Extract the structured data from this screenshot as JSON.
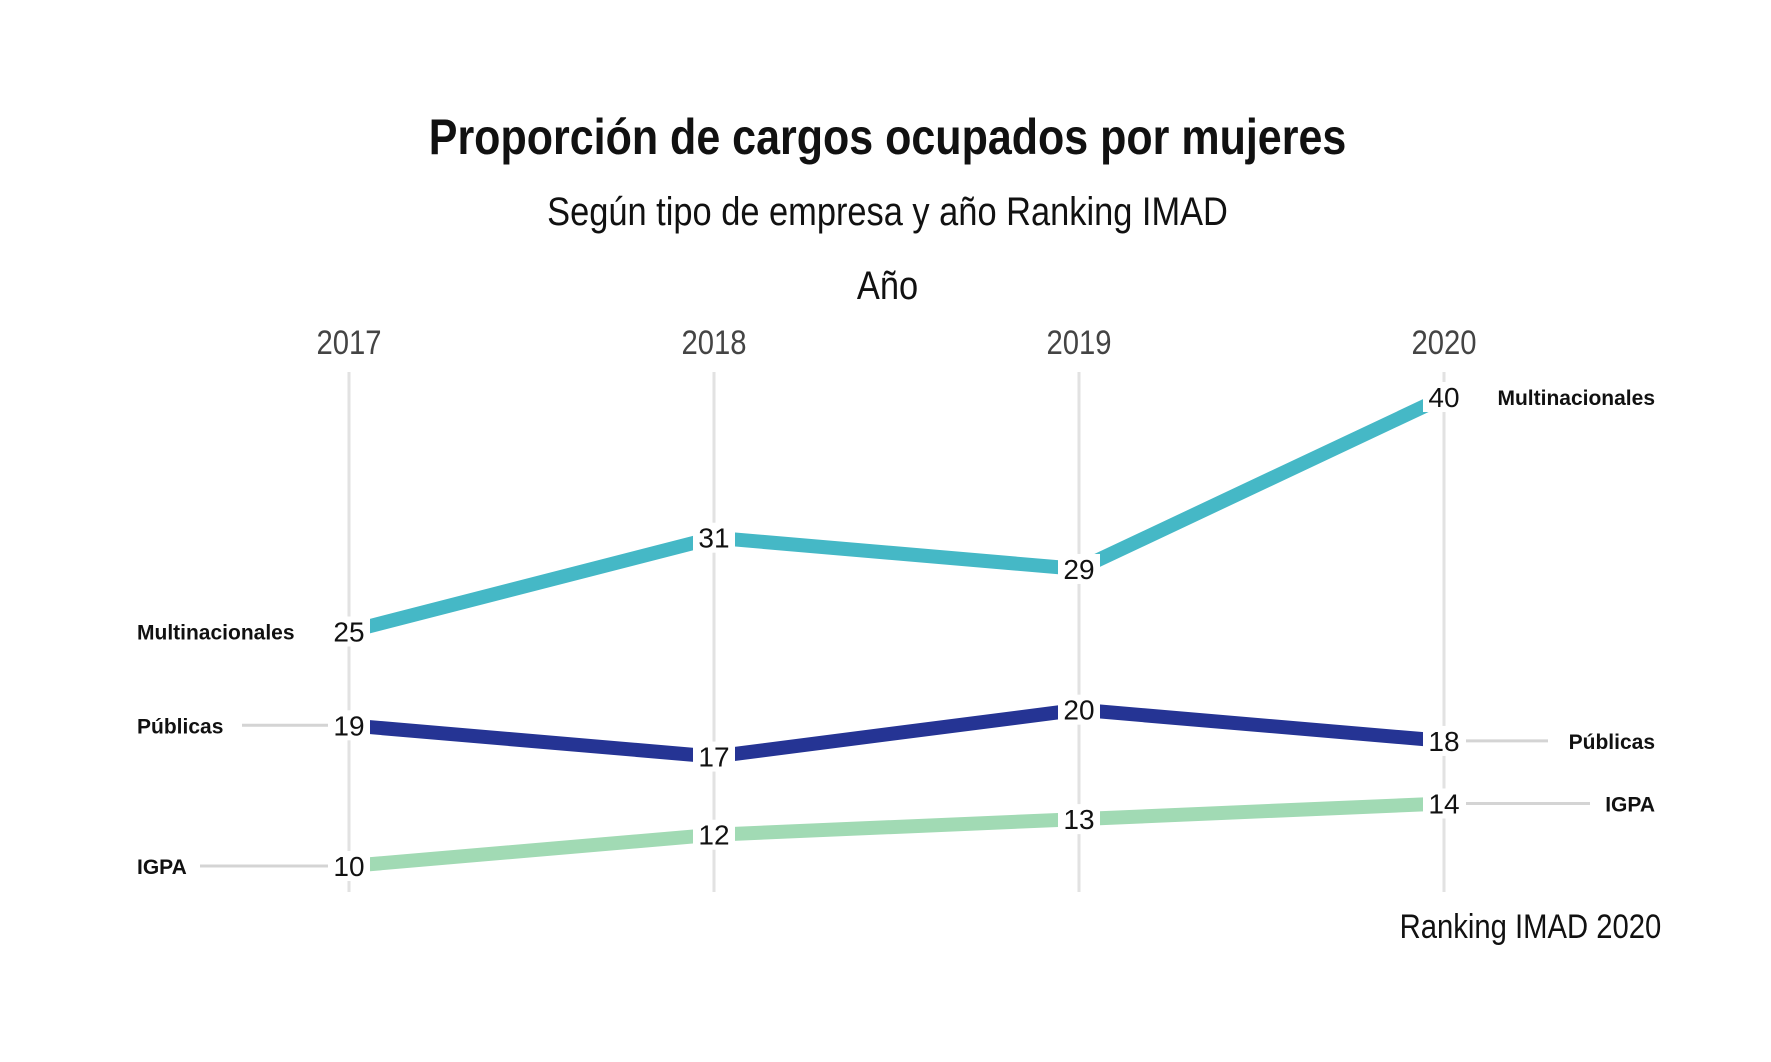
{
  "chart_data": {
    "type": "line",
    "title": "Proporción de cargos ocupados por mujeres",
    "subtitle": "Según tipo de empresa y año Ranking IMAD",
    "xlabel": "Año",
    "caption": "Ranking IMAD 2020",
    "x": [
      "2017",
      "2018",
      "2019",
      "2020"
    ],
    "ylim": [
      10,
      40
    ],
    "grid": "vertical",
    "legend": "direct-labels-both-ends",
    "series": [
      {
        "name": "Multinacionales",
        "values": [
          25,
          31,
          29,
          40
        ],
        "color": "#45B8C6"
      },
      {
        "name": "Públicas",
        "values": [
          19,
          17,
          20,
          18
        ],
        "color": "#253494"
      },
      {
        "name": "IGPA",
        "values": [
          10,
          12,
          13,
          14
        ],
        "color": "#A1DAB4"
      }
    ]
  }
}
